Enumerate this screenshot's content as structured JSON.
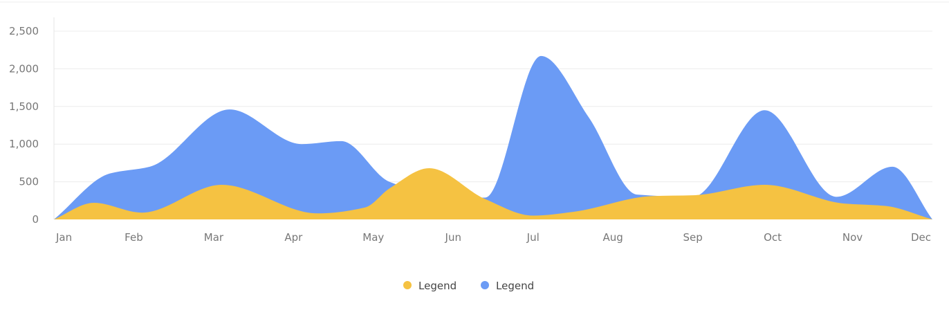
{
  "chart_data": {
    "type": "area",
    "title": "",
    "xlabel": "",
    "ylabel": "",
    "categories": [
      "Jan",
      "Feb",
      "Mar",
      "Apr",
      "May",
      "Jun",
      "Jul",
      "Aug",
      "Sep",
      "Oct",
      "Nov",
      "Dec"
    ],
    "ylim": [
      0,
      2500
    ],
    "yticks": [
      0,
      500,
      1000,
      1500,
      2000,
      2500
    ],
    "ytick_labels": [
      "0",
      "500",
      "1,000",
      "1,500",
      "2,000",
      "2,500"
    ],
    "grid": true,
    "legend_position": "bottom-center",
    "stacked": false,
    "series": [
      {
        "name": "Legend",
        "color": "#F5C242",
        "x": [
          0,
          0.5,
          1.1,
          2.1,
          3.3,
          3.9,
          4.2,
          4.7,
          5.4,
          6.0,
          6.5,
          7.5,
          8.0,
          8.9,
          9.9,
          10.4,
          11.0
        ],
        "y": [
          0,
          220,
          90,
          460,
          80,
          160,
          410,
          680,
          270,
          50,
          100,
          310,
          320,
          460,
          210,
          180,
          0
        ]
      },
      {
        "name": "Legend",
        "color": "#6B9BF5",
        "x": [
          0,
          0.7,
          1.2,
          2.2,
          3.1,
          3.6,
          4.2,
          5.0,
          5.4,
          6.1,
          6.7,
          7.3,
          8.0,
          8.9,
          9.8,
          10.5,
          11.0
        ],
        "y": [
          0,
          610,
          700,
          1460,
          1000,
          1040,
          500,
          290,
          290,
          2170,
          1350,
          330,
          300,
          1450,
          300,
          700,
          0
        ]
      }
    ]
  }
}
